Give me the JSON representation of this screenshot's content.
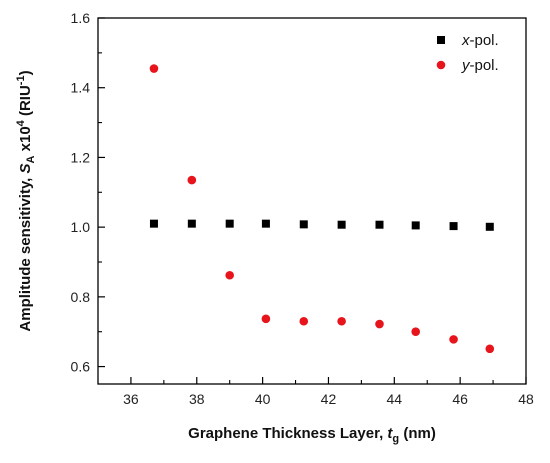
{
  "chart_data": {
    "type": "scatter",
    "xlabel_main": "Graphene Thickness Layer, ",
    "xlabel_var": "t",
    "xlabel_sub": "g",
    "xlabel_unit": " (nm)",
    "ylabel_main": "Amplitude sensitivity, ",
    "ylabel_var": "S",
    "ylabel_sub": "A",
    "ylabel_mid": " x10",
    "ylabel_sup": "4",
    "ylabel_unit": " (RIU",
    "ylabel_unit_sup": "-1",
    "ylabel_end": ")",
    "xlim": [
      35,
      48
    ],
    "ylim": [
      0.55,
      1.6
    ],
    "xticks": [
      36,
      38,
      40,
      42,
      44,
      46,
      48
    ],
    "xtick_labels": [
      "36",
      "38",
      "40",
      "42",
      "44",
      "46",
      "48"
    ],
    "yticks": [
      0.6,
      0.8,
      1.0,
      1.2,
      1.4,
      1.6
    ],
    "ytick_labels": [
      "0.6",
      "0.8",
      "1.0",
      "1.2",
      "1.4",
      "1.6"
    ],
    "grid": false,
    "legend_position": "top-right",
    "series": [
      {
        "name_var": "x",
        "name_rest": "-pol.",
        "marker": "square",
        "color": "#000000",
        "x": [
          36.7,
          37.85,
          39.0,
          40.1,
          41.25,
          42.4,
          43.55,
          44.65,
          45.8,
          46.9
        ],
        "y": [
          1.01,
          1.01,
          1.01,
          1.01,
          1.008,
          1.007,
          1.007,
          1.005,
          1.003,
          1.001
        ]
      },
      {
        "name_var": "y",
        "name_rest": "-pol.",
        "marker": "circle",
        "color": "#e8141b",
        "x": [
          36.7,
          37.85,
          39.0,
          40.1,
          41.25,
          42.4,
          43.55,
          44.65,
          45.8,
          46.9
        ],
        "y": [
          1.455,
          1.135,
          0.862,
          0.737,
          0.73,
          0.73,
          0.722,
          0.7,
          0.678,
          0.651
        ]
      }
    ]
  }
}
